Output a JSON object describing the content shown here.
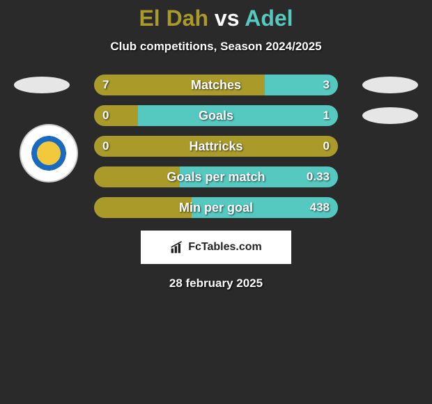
{
  "title": {
    "left_name": "El Dah",
    "vs": "vs",
    "right_name": "Adel",
    "left_color": "#a99a2a",
    "right_color": "#55c9c0"
  },
  "subtitle": "Club competitions, Season 2024/2025",
  "colors": {
    "left_bar": "#a99a2a",
    "right_bar": "#55c9c0",
    "track_bg": "#404040",
    "badge_bg": "#e6e6e6"
  },
  "stats": [
    {
      "label": "Matches",
      "left_val": "7",
      "right_val": "3",
      "left_pct": 70,
      "right_pct": 30,
      "show_left_badge": true,
      "show_right_badge": true
    },
    {
      "label": "Goals",
      "left_val": "0",
      "right_val": "1",
      "left_pct": 18,
      "right_pct": 82,
      "show_left_badge": false,
      "show_right_badge": true
    },
    {
      "label": "Hattricks",
      "left_val": "0",
      "right_val": "0",
      "left_pct": 100,
      "right_pct": 0,
      "show_left_badge": false,
      "show_right_badge": false
    },
    {
      "label": "Goals per match",
      "left_val": "",
      "right_val": "0.33",
      "left_pct": 35,
      "right_pct": 65,
      "show_left_badge": false,
      "show_right_badge": false
    },
    {
      "label": "Min per goal",
      "left_val": "",
      "right_val": "438",
      "left_pct": 40,
      "right_pct": 60,
      "show_left_badge": false,
      "show_right_badge": false
    }
  ],
  "attribution": "FcTables.com",
  "date": "28 february 2025"
}
